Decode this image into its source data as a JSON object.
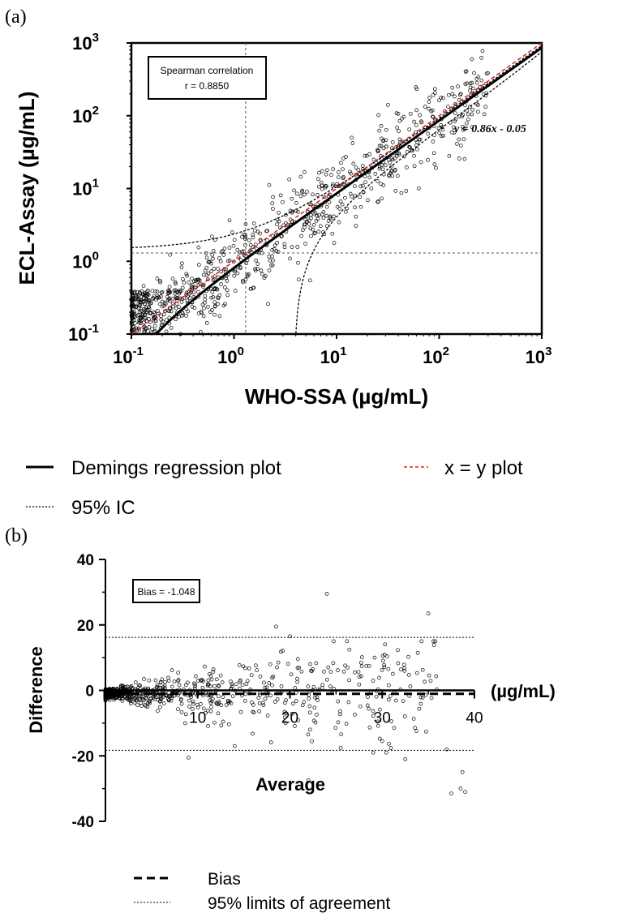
{
  "panel_a": {
    "label": "(a)",
    "chart_data": {
      "type": "scatter",
      "xscale": "log",
      "yscale": "log",
      "xlabel": "WHO-SSA (µg/mL)",
      "ylabel": "ECL-Assay (µg/mL)",
      "xlim": [
        0.1,
        1000
      ],
      "ylim": [
        0.1,
        1000
      ],
      "ticks": [
        0.1,
        1,
        10,
        100,
        1000
      ],
      "tick_labels": [
        {
          "base": "10",
          "exp": "-1"
        },
        {
          "base": "10",
          "exp": "0"
        },
        {
          "base": "10",
          "exp": "1"
        },
        {
          "base": "10",
          "exp": "2"
        },
        {
          "base": "10",
          "exp": "3"
        }
      ],
      "cutoff_x": 1.3,
      "cutoff_y": 1.3,
      "regression": {
        "label": "y = 0.86x - 0.05",
        "slope": 0.86,
        "intercept": -0.05
      },
      "identity_line": {
        "slope": 1,
        "intercept": 0
      },
      "correlation": {
        "title": "Spearman correlation",
        "value": "r = 0.8850"
      },
      "n_points": 900,
      "point_cloud": {
        "log_sd": 0.28,
        "x_range": [
          0.1,
          300
        ]
      }
    }
  },
  "legend_a": {
    "deming": "Demings regression plot",
    "identity": "x = y plot",
    "ci": "95% IC"
  },
  "panel_b": {
    "label": "(b)",
    "chart_data": {
      "type": "scatter",
      "xlabel": "Average",
      "ylabel": "Difference",
      "unit": "(µg/mL)",
      "xlim": [
        0,
        40
      ],
      "ylim": [
        -40,
        40
      ],
      "xticks": [
        "10",
        "20",
        "30",
        "40"
      ],
      "yticks": [
        "40",
        "20",
        "0",
        "-20",
        "-40"
      ],
      "bias": -1.048,
      "bias_label": "Bias = -1.048",
      "loa_upper": 16.2,
      "loa_lower": -18.3,
      "n_points": 900,
      "outliers": [
        [
          24,
          29.5
        ],
        [
          35,
          23.5
        ],
        [
          18.5,
          19.5
        ],
        [
          39,
          -31
        ],
        [
          37.5,
          -31.5
        ],
        [
          38.5,
          -30
        ],
        [
          38.7,
          -25
        ],
        [
          22,
          -27.5
        ],
        [
          32.5,
          -21
        ],
        [
          9,
          -20.5
        ],
        [
          37,
          -18
        ],
        [
          25.5,
          -17.5
        ],
        [
          14,
          -17
        ],
        [
          30,
          -15.5
        ],
        [
          20,
          16.5
        ],
        [
          29.5,
          -9.5
        ]
      ]
    }
  },
  "legend_b": {
    "bias": "Bias",
    "loa": "95% limits of agreement"
  }
}
